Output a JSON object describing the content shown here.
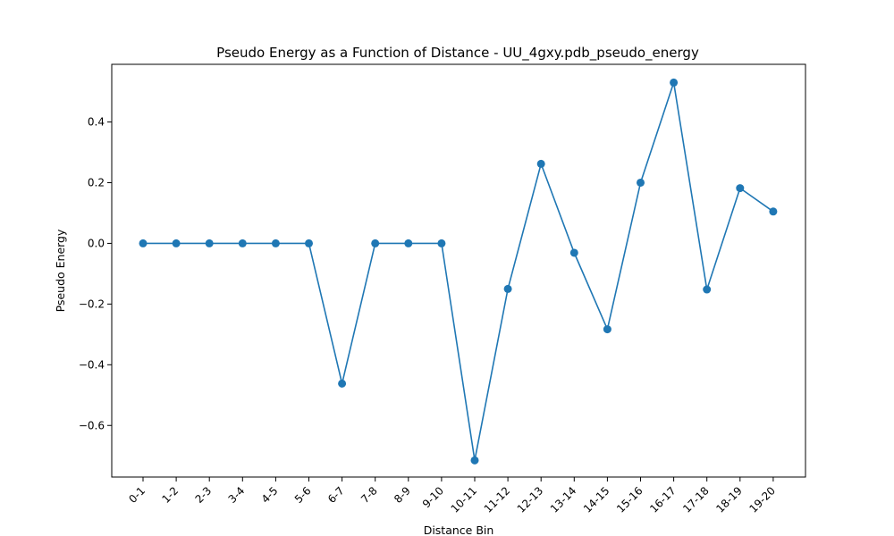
{
  "chart_data": {
    "type": "line",
    "title": "Pseudo Energy as a Function of Distance - UU_4gxy.pdb_pseudo_energy",
    "xlabel": "Distance Bin",
    "ylabel": "Pseudo Energy",
    "categories": [
      "0-1",
      "1-2",
      "2-3",
      "3-4",
      "4-5",
      "5-6",
      "6-7",
      "7-8",
      "8-9",
      "9-10",
      "10-11",
      "11-12",
      "12-13",
      "13-14",
      "14-15",
      "15-16",
      "16-17",
      "17-18",
      "18-19",
      "19-20"
    ],
    "series": [
      {
        "values": [
          0,
          0,
          0,
          0,
          0,
          0,
          -0.462,
          0,
          0,
          0,
          -0.715,
          -0.15,
          0.262,
          -0.031,
          -0.283,
          0.2,
          0.53,
          -0.152,
          0.182,
          0.105
        ],
        "color": "#1f77b4",
        "marker": "circle"
      }
    ],
    "ylim": [
      -0.77,
      0.59
    ],
    "yticks": [
      -0.6,
      -0.4,
      -0.2,
      0.0,
      0.2,
      0.4
    ],
    "ytick_labels": [
      "−0.6",
      "−0.4",
      "−0.2",
      "0.0",
      "0.2",
      "0.4"
    ],
    "grid": false,
    "legend": "none"
  }
}
